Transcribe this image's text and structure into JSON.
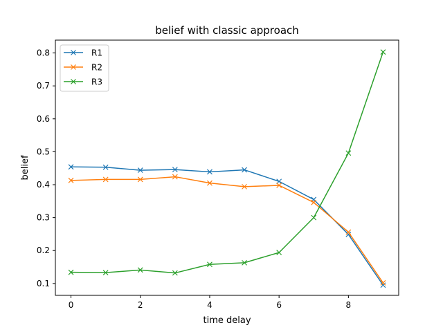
{
  "chart_data": {
    "type": "line",
    "title": "belief with classic approach",
    "xlabel": "time delay",
    "ylabel": "belief",
    "xlim": [
      -0.45,
      9.45
    ],
    "ylim": [
      0.064,
      0.839
    ],
    "x_ticks": [
      0,
      2,
      4,
      6,
      8
    ],
    "y_ticks": [
      0.1,
      0.2,
      0.3,
      0.4,
      0.5,
      0.6,
      0.7,
      0.8
    ],
    "grid": false,
    "legend_position": "upper-left",
    "marker": "x",
    "x": [
      0,
      1,
      2,
      3,
      4,
      5,
      6,
      7,
      8,
      9
    ],
    "series": [
      {
        "name": "R1",
        "color": "#1f77b4",
        "values": [
          0.454,
          0.453,
          0.444,
          0.446,
          0.439,
          0.445,
          0.41,
          0.355,
          0.249,
          0.095
        ]
      },
      {
        "name": "R2",
        "color": "#ff7f0e",
        "values": [
          0.413,
          0.416,
          0.416,
          0.424,
          0.405,
          0.394,
          0.398,
          0.346,
          0.256,
          0.102
        ]
      },
      {
        "name": "R3",
        "color": "#2ca02c",
        "values": [
          0.134,
          0.133,
          0.141,
          0.132,
          0.158,
          0.163,
          0.194,
          0.3,
          0.496,
          0.803
        ]
      }
    ]
  }
}
